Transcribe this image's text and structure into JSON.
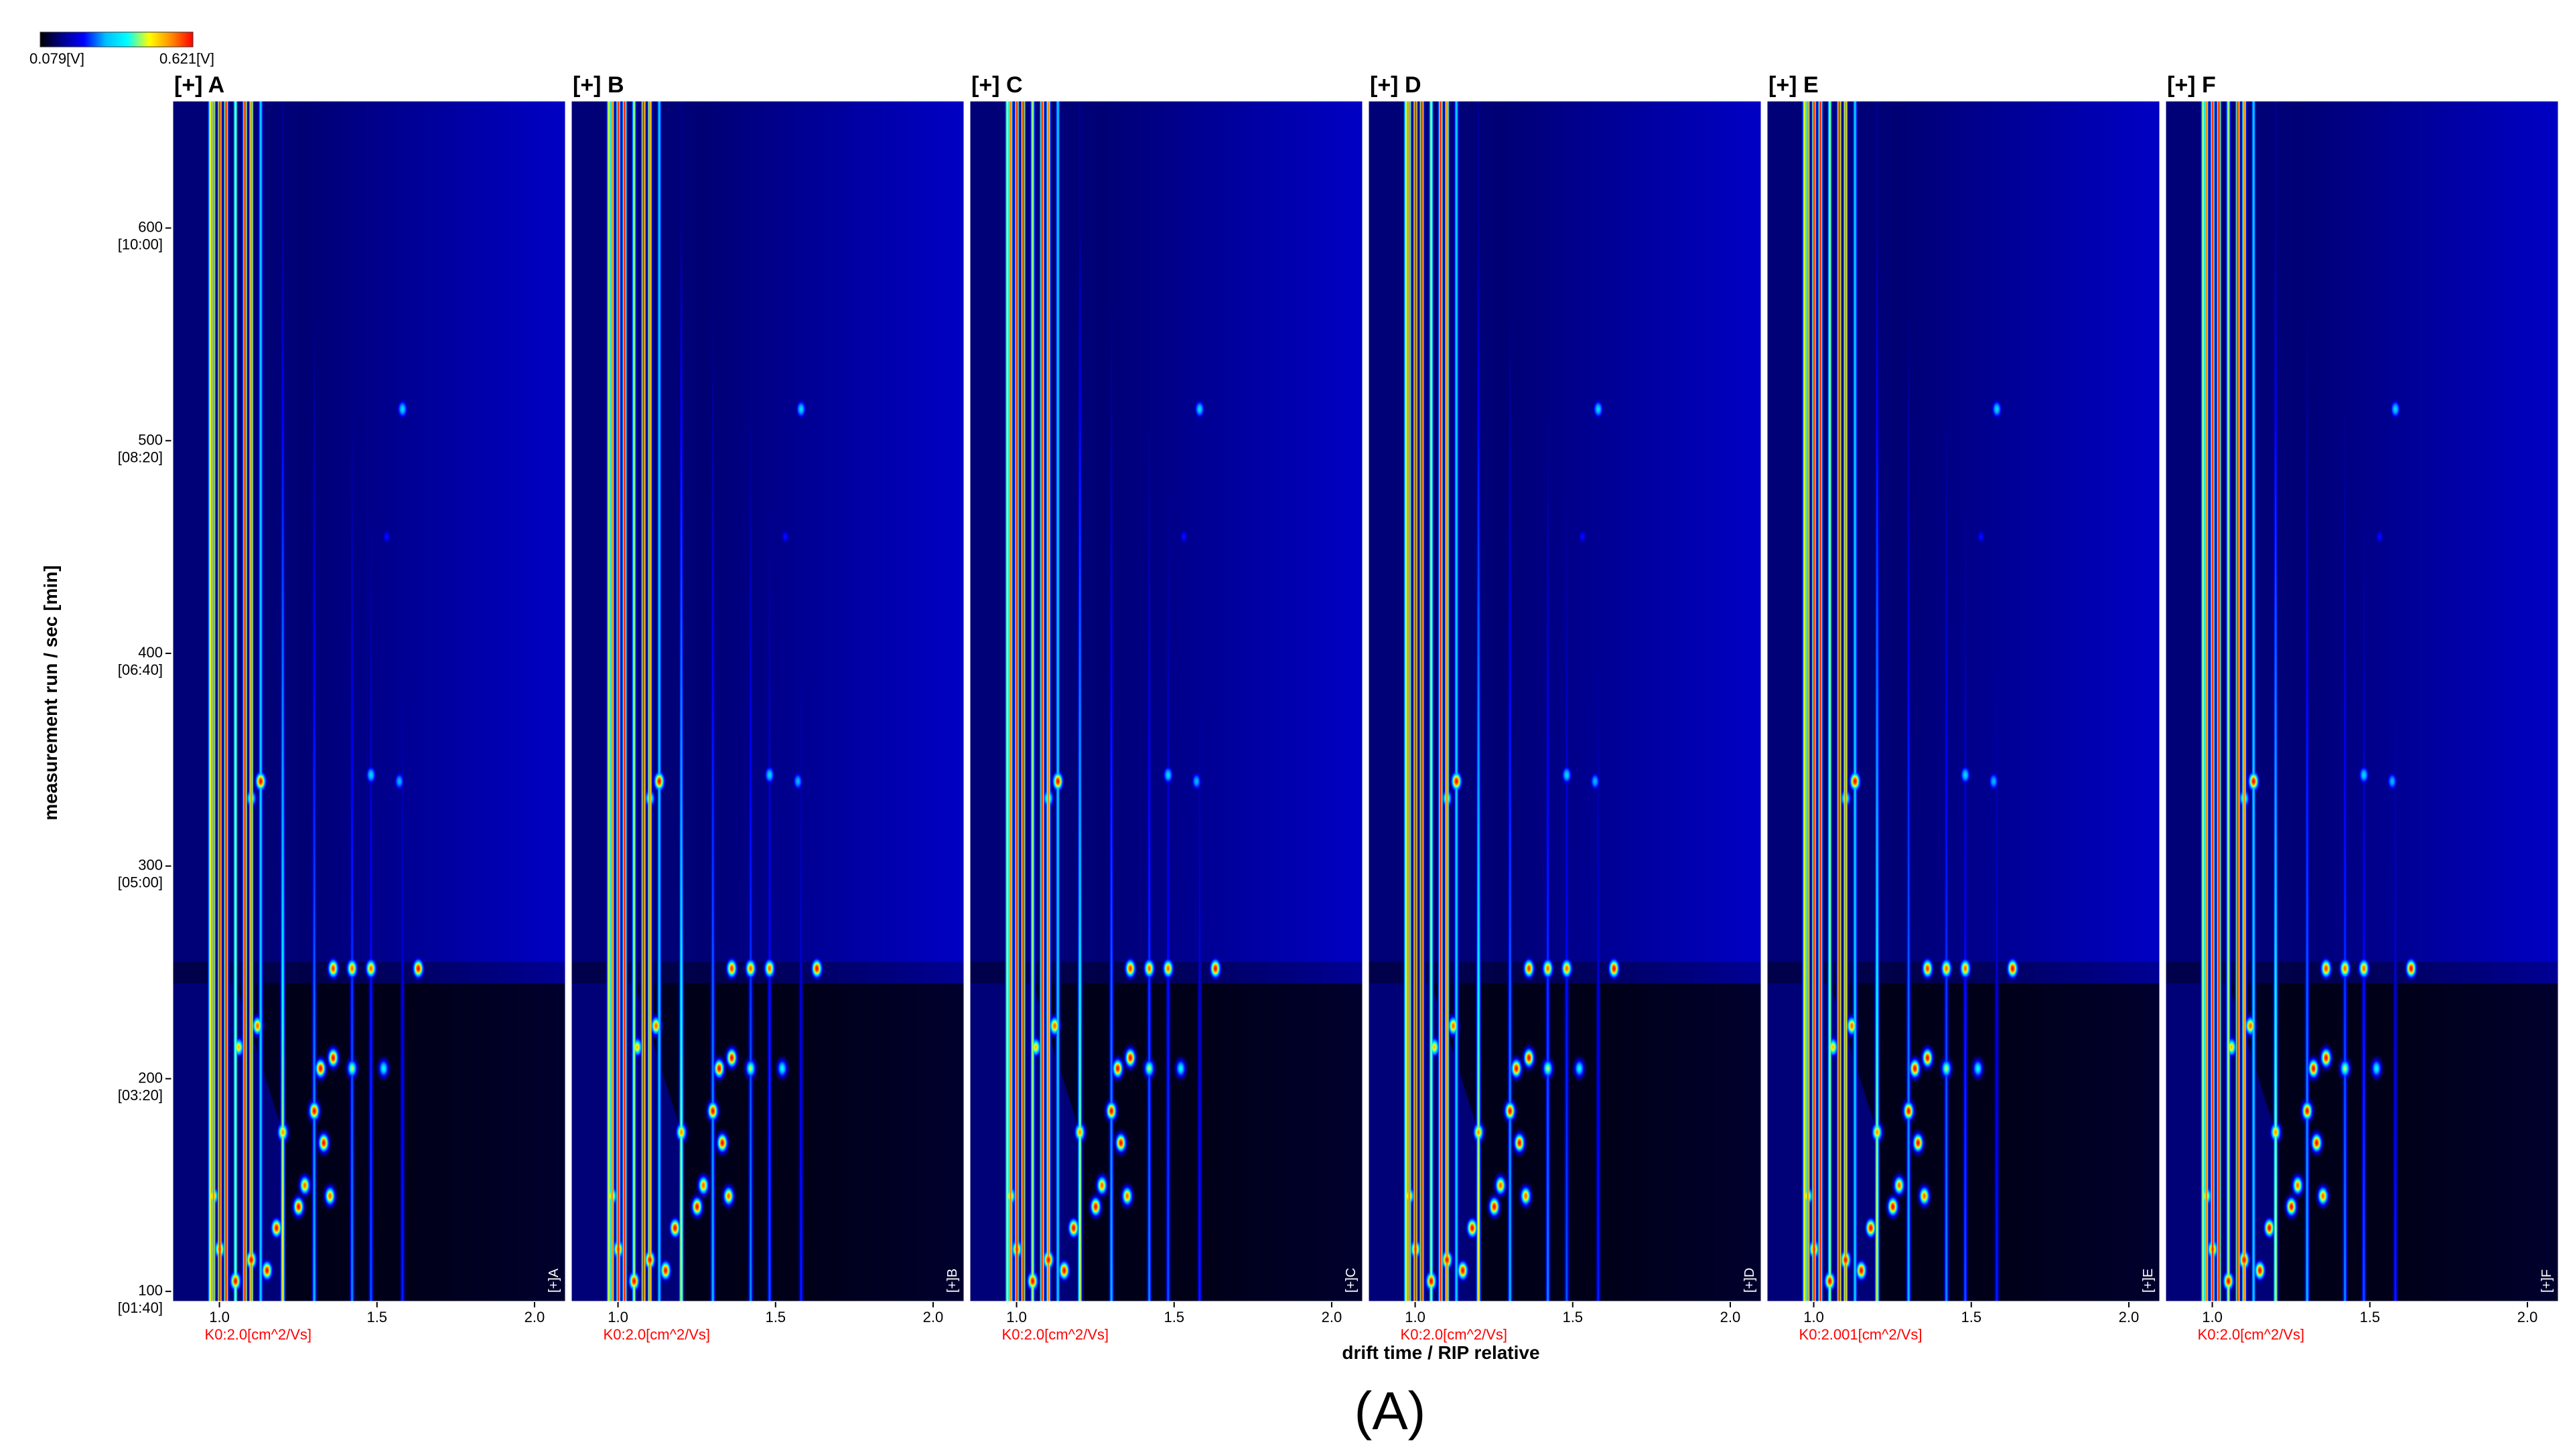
{
  "colorbar": {
    "min_label": "0.079[V]",
    "max_label": "0.621[V]",
    "stops": [
      "#000000",
      "#00008b",
      "#0000ff",
      "#00bfff",
      "#00ffff",
      "#ffff00",
      "#ff8c00",
      "#ff0000"
    ]
  },
  "y_axis": {
    "title": "measurement run / sec [min]",
    "ticks": [
      {
        "value": 100,
        "time": "[01:40]"
      },
      {
        "value": 200,
        "time": "[03:20]"
      },
      {
        "value": 300,
        "time": "[05:00]"
      },
      {
        "value": 400,
        "time": "[06:40]"
      },
      {
        "value": 500,
        "time": "[08:20]"
      },
      {
        "value": 600,
        "time": "[10:00]"
      }
    ]
  },
  "x_axis": {
    "title": "drift time / RIP relative"
  },
  "figure_label": "(A)",
  "chart_data": {
    "type": "heatmap",
    "description_type": "GC-IMS topographic plots",
    "panels": [
      {
        "name": "A",
        "header": "[+] A",
        "corner": "[+]A",
        "k0_label": "K0:2.0[cm^2/Vs]"
      },
      {
        "name": "B",
        "header": "[+] B",
        "corner": "[+]B",
        "k0_label": "K0:2.0[cm^2/Vs]"
      },
      {
        "name": "C",
        "header": "[+] C",
        "corner": "[+]C",
        "k0_label": "K0:2.0[cm^2/Vs]"
      },
      {
        "name": "D",
        "header": "[+] D",
        "corner": "[+]D",
        "k0_label": "K0:2.0[cm^2/Vs]"
      },
      {
        "name": "E",
        "header": "[+] E",
        "corner": "[+]E",
        "k0_label": "K0:2.001[cm^2/Vs]"
      },
      {
        "name": "F",
        "header": "[+] F",
        "corner": "[+]F",
        "k0_label": "K0:2.0[cm^2/Vs]"
      }
    ],
    "xlim": [
      0.85,
      2.1
    ],
    "x_ticks": [
      "1.0",
      "1.5",
      "2.0"
    ],
    "ylim": [
      95,
      660
    ],
    "y_ticks": [
      100,
      200,
      300,
      400,
      500,
      600
    ],
    "intensity_range": [
      0.079,
      0.621
    ],
    "intensity_unit": "V",
    "vertical_streaks": [
      {
        "x": 0.97,
        "level": 0.75
      },
      {
        "x": 0.98,
        "level": 0.9
      },
      {
        "x": 1.0,
        "level": 1.0
      },
      {
        "x": 1.02,
        "level": 1.0
      },
      {
        "x": 1.05,
        "level": 0.7
      },
      {
        "x": 1.08,
        "level": 1.0
      },
      {
        "x": 1.1,
        "level": 0.9
      },
      {
        "x": 1.13,
        "level": 0.55
      },
      {
        "x": 1.2,
        "level": 0.6
      },
      {
        "x": 1.3,
        "level": 0.4
      },
      {
        "x": 1.42,
        "level": 0.35
      },
      {
        "x": 1.48,
        "level": 0.3
      },
      {
        "x": 1.58,
        "level": 0.25
      }
    ],
    "peaks": [
      {
        "x": 1.13,
        "y": 340,
        "level": 1.0
      },
      {
        "x": 1.1,
        "y": 332,
        "level": 0.7
      },
      {
        "x": 1.48,
        "y": 343,
        "level": 0.55
      },
      {
        "x": 1.57,
        "y": 340,
        "level": 0.5
      },
      {
        "x": 1.36,
        "y": 252,
        "level": 0.95
      },
      {
        "x": 1.42,
        "y": 252,
        "level": 0.9
      },
      {
        "x": 1.48,
        "y": 252,
        "level": 0.9
      },
      {
        "x": 1.63,
        "y": 252,
        "level": 1.0
      },
      {
        "x": 1.53,
        "y": 455,
        "level": 0.3
      },
      {
        "x": 1.58,
        "y": 515,
        "level": 0.55
      },
      {
        "x": 1.32,
        "y": 205,
        "level": 1.0
      },
      {
        "x": 1.36,
        "y": 210,
        "level": 1.0
      },
      {
        "x": 1.3,
        "y": 185,
        "level": 1.0
      },
      {
        "x": 1.33,
        "y": 170,
        "level": 1.0
      },
      {
        "x": 1.27,
        "y": 150,
        "level": 0.9
      },
      {
        "x": 1.35,
        "y": 145,
        "level": 0.9
      },
      {
        "x": 1.25,
        "y": 140,
        "level": 1.0
      },
      {
        "x": 1.18,
        "y": 130,
        "level": 1.0
      },
      {
        "x": 1.1,
        "y": 115,
        "level": 1.0
      },
      {
        "x": 1.15,
        "y": 110,
        "level": 1.0
      },
      {
        "x": 1.05,
        "y": 105,
        "level": 1.0
      },
      {
        "x": 1.0,
        "y": 120,
        "level": 0.9
      },
      {
        "x": 0.98,
        "y": 145,
        "level": 0.8
      },
      {
        "x": 1.2,
        "y": 175,
        "level": 0.85
      },
      {
        "x": 1.42,
        "y": 205,
        "level": 0.7
      },
      {
        "x": 1.52,
        "y": 205,
        "level": 0.6
      },
      {
        "x": 1.06,
        "y": 215,
        "level": 0.8
      },
      {
        "x": 1.12,
        "y": 225,
        "level": 0.9
      }
    ]
  }
}
